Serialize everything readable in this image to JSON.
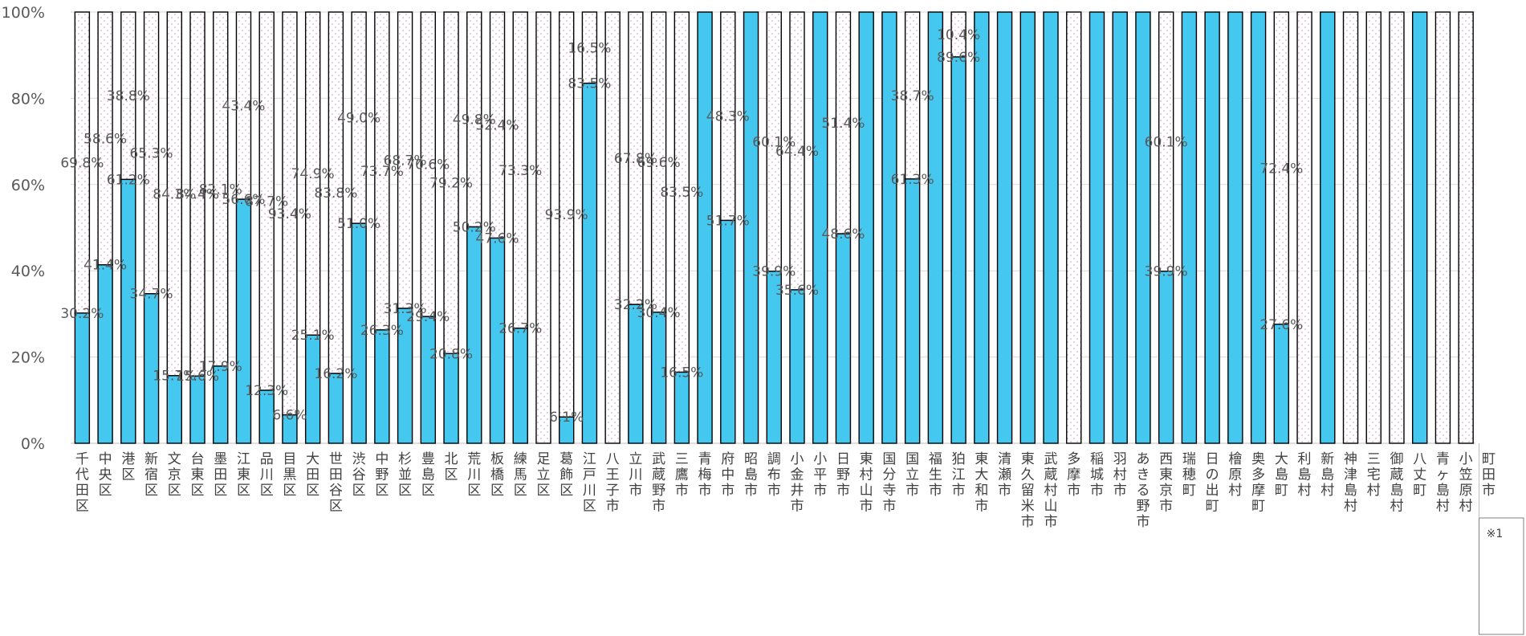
{
  "chart_data": {
    "type": "bar",
    "stacked": true,
    "percent_stacked": true,
    "ylim": [
      0,
      100
    ],
    "yticks": [
      "0%",
      "20%",
      "40%",
      "60%",
      "80%",
      "100%"
    ],
    "grid": true,
    "legend": "none",
    "colors": {
      "solid": "#45c8f0",
      "pattern": "#ffffff",
      "pattern_dot": "#e2a6d6",
      "outline": "#000000"
    },
    "categories": [
      "千代田区",
      "中央区",
      "港区",
      "新宿区",
      "文京区",
      "台東区",
      "墨田区",
      "江東区",
      "品川区",
      "目黒区",
      "大田区",
      "世田谷区",
      "渋谷区",
      "中野区",
      "杉並区",
      "豊島区",
      "北区",
      "荒川区",
      "板橋区",
      "練馬区",
      "足立区",
      "葛飾区",
      "江戸川区",
      "八王子市",
      "立川市",
      "武蔵野市",
      "三鷹市",
      "青梅市",
      "府中市",
      "昭島市",
      "調布市",
      "小金井市",
      "小平市",
      "日野市",
      "東村山市",
      "国分寺市",
      "国立市",
      "福生市",
      "狛江市",
      "東大和市",
      "清瀬市",
      "東久留米市",
      "武蔵村山市",
      "多摩市",
      "稲城市",
      "羽村市",
      "あきる野市",
      "西東京市",
      "瑞穂町",
      "日の出町",
      "檜原村",
      "奥多摩町",
      "大島町",
      "利島村",
      "新島村",
      "神津島村",
      "三宅村",
      "御蔵島村",
      "八丈町",
      "青ヶ島村",
      "小笠原村"
    ],
    "series": [
      {
        "values": [
          30.2,
          41.4,
          61.2,
          34.7,
          15.7,
          15.6,
          17.9,
          56.6,
          12.3,
          6.6,
          25.1,
          16.2,
          51.0,
          26.3,
          31.3,
          29.4,
          20.8,
          50.2,
          47.6,
          26.7,
          0,
          6.1,
          83.5,
          0,
          32.2,
          30.4,
          16.5,
          100,
          51.7,
          100,
          39.9,
          35.6,
          100,
          48.6,
          100,
          100,
          61.3,
          100,
          89.6,
          100,
          100,
          100,
          100,
          0,
          100,
          100,
          100,
          39.9,
          100,
          100,
          100,
          100,
          27.6,
          0,
          100,
          0,
          0,
          0,
          100,
          0,
          0
        ],
        "labels": [
          "30.2%",
          "41.4%",
          "61.2%",
          "34.7%",
          "15.7%",
          "15.6%",
          "17.9%",
          "56.6%",
          "12.3%",
          "6.6%",
          "25.1%",
          "16.2%",
          "51.0%",
          "26.3%",
          "31.3%",
          "29.4%",
          "20.8%",
          "50.2%",
          "47.6%",
          "26.7%",
          "",
          "6.1%",
          "83.5%",
          "",
          "32.2%",
          "30.4%",
          "16.5%",
          "",
          "51.7%",
          "",
          "39.9%",
          "35.6%",
          "",
          "48.6%",
          "",
          "",
          "61.3%",
          "",
          "89.6%",
          "",
          "",
          "",
          "",
          "",
          "",
          "",
          "",
          "39.9%",
          "",
          "",
          "",
          "",
          "27.6%",
          "",
          "",
          "",
          "",
          "",
          "",
          "",
          ""
        ]
      },
      {
        "values": [
          69.8,
          58.6,
          38.8,
          65.3,
          84.3,
          84.4,
          82.1,
          43.4,
          87.7,
          93.4,
          74.9,
          83.8,
          49.0,
          73.7,
          68.7,
          70.6,
          79.2,
          49.8,
          52.4,
          73.3,
          100,
          93.9,
          16.5,
          100,
          67.8,
          69.6,
          83.5,
          0,
          48.3,
          0,
          60.1,
          64.4,
          0,
          51.4,
          0,
          0,
          38.7,
          0,
          10.4,
          0,
          0,
          0,
          0,
          100,
          0,
          0,
          0,
          60.1,
          0,
          0,
          0,
          0,
          72.4,
          100,
          0,
          100,
          100,
          100,
          0,
          100,
          100
        ],
        "labels": [
          "69.8%",
          "58.6%",
          "38.8%",
          "65.3%",
          "84.3%",
          "84.4%",
          "82.1%",
          "43.4%",
          "87.7%",
          "93.4%",
          "74.9%",
          "83.8%",
          "49.0%",
          "73.7%",
          "68.7%",
          "70.6%",
          "79.2%",
          "49.8%",
          "52.4%",
          "73.3%",
          "",
          "93.9%",
          "16.5%",
          "",
          "67.8%",
          "69.6%",
          "83.5%",
          "",
          "48.3%",
          "",
          "60.1%",
          "64.4%",
          "",
          "51.4%",
          "",
          "",
          "38.7%",
          "",
          "10.4%",
          "",
          "",
          "",
          "",
          "",
          "",
          "",
          "",
          "60.1%",
          "",
          "",
          "",
          "",
          "72.4%",
          "",
          "",
          "",
          "",
          "",
          "",
          "",
          ""
        ]
      }
    ],
    "footnote_category": "町田市",
    "footnote_mark": "※1"
  }
}
